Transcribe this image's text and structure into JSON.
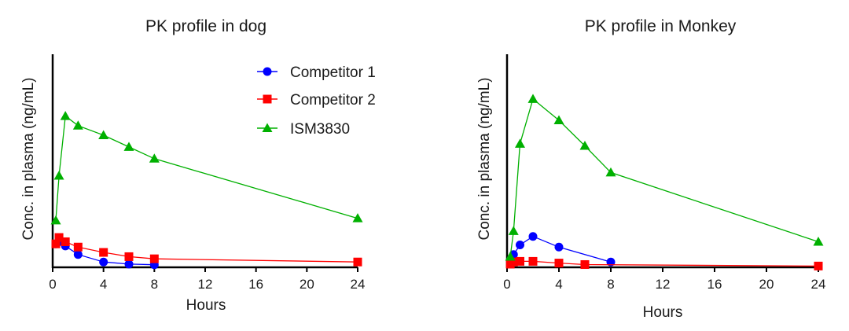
{
  "chart_data": [
    {
      "type": "line",
      "title": "PK profile in dog",
      "xlabel": "Hours",
      "ylabel": "Conc. in plasma (ng/mL)",
      "xlim": [
        0,
        24
      ],
      "ylim": [
        0,
        100
      ],
      "y_tick_labels": false,
      "x_ticks": [
        0,
        4,
        8,
        12,
        16,
        20,
        24
      ],
      "legend": "top-right",
      "series": [
        {
          "name": "Competitor 1",
          "color": "#0000ff",
          "marker": "circle",
          "x": [
            0.25,
            0.5,
            1,
            2,
            4,
            6,
            8
          ],
          "y": [
            11,
            12,
            10,
            6,
            2.5,
            1.5,
            1.2
          ]
        },
        {
          "name": "Competitor 2",
          "color": "#ff0000",
          "marker": "square",
          "x": [
            0.25,
            0.5,
            1,
            2,
            4,
            6,
            8,
            24
          ],
          "y": [
            11,
            14,
            12,
            9.5,
            7,
            5,
            4,
            2.5
          ]
        },
        {
          "name": "ISM3830",
          "color": "#00b000",
          "marker": "triangle",
          "x": [
            0.25,
            0.5,
            1,
            2,
            4,
            6,
            8,
            24
          ],
          "y": [
            22,
            43,
            71,
            66.5,
            62,
            56.5,
            51,
            23
          ]
        }
      ]
    },
    {
      "type": "line",
      "title": "PK profile in Monkey",
      "xlabel": "Hours",
      "ylabel": "Conc. in plasma (ng/mL)",
      "xlim": [
        0,
        24
      ],
      "ylim": [
        0,
        100
      ],
      "y_tick_labels": false,
      "x_ticks": [
        0,
        4,
        8,
        12,
        16,
        20,
        24
      ],
      "series": [
        {
          "name": "Competitor 1",
          "color": "#0000ff",
          "marker": "circle",
          "x": [
            0.25,
            0.5,
            1,
            2,
            4,
            8
          ],
          "y": [
            3,
            6,
            10.5,
            14.5,
            9.5,
            2.5
          ]
        },
        {
          "name": "Competitor 2",
          "color": "#ff0000",
          "marker": "square",
          "x": [
            0.25,
            0.5,
            1,
            2,
            4,
            6,
            24
          ],
          "y": [
            1.5,
            2.5,
            2.8,
            2.8,
            2,
            1.3,
            0.6
          ]
        },
        {
          "name": "ISM3830",
          "color": "#00b000",
          "marker": "triangle",
          "x": [
            0.25,
            0.5,
            1,
            2,
            4,
            6,
            8,
            24
          ],
          "y": [
            5,
            17,
            58,
            79,
            69,
            57,
            44.5,
            12
          ]
        }
      ]
    }
  ]
}
